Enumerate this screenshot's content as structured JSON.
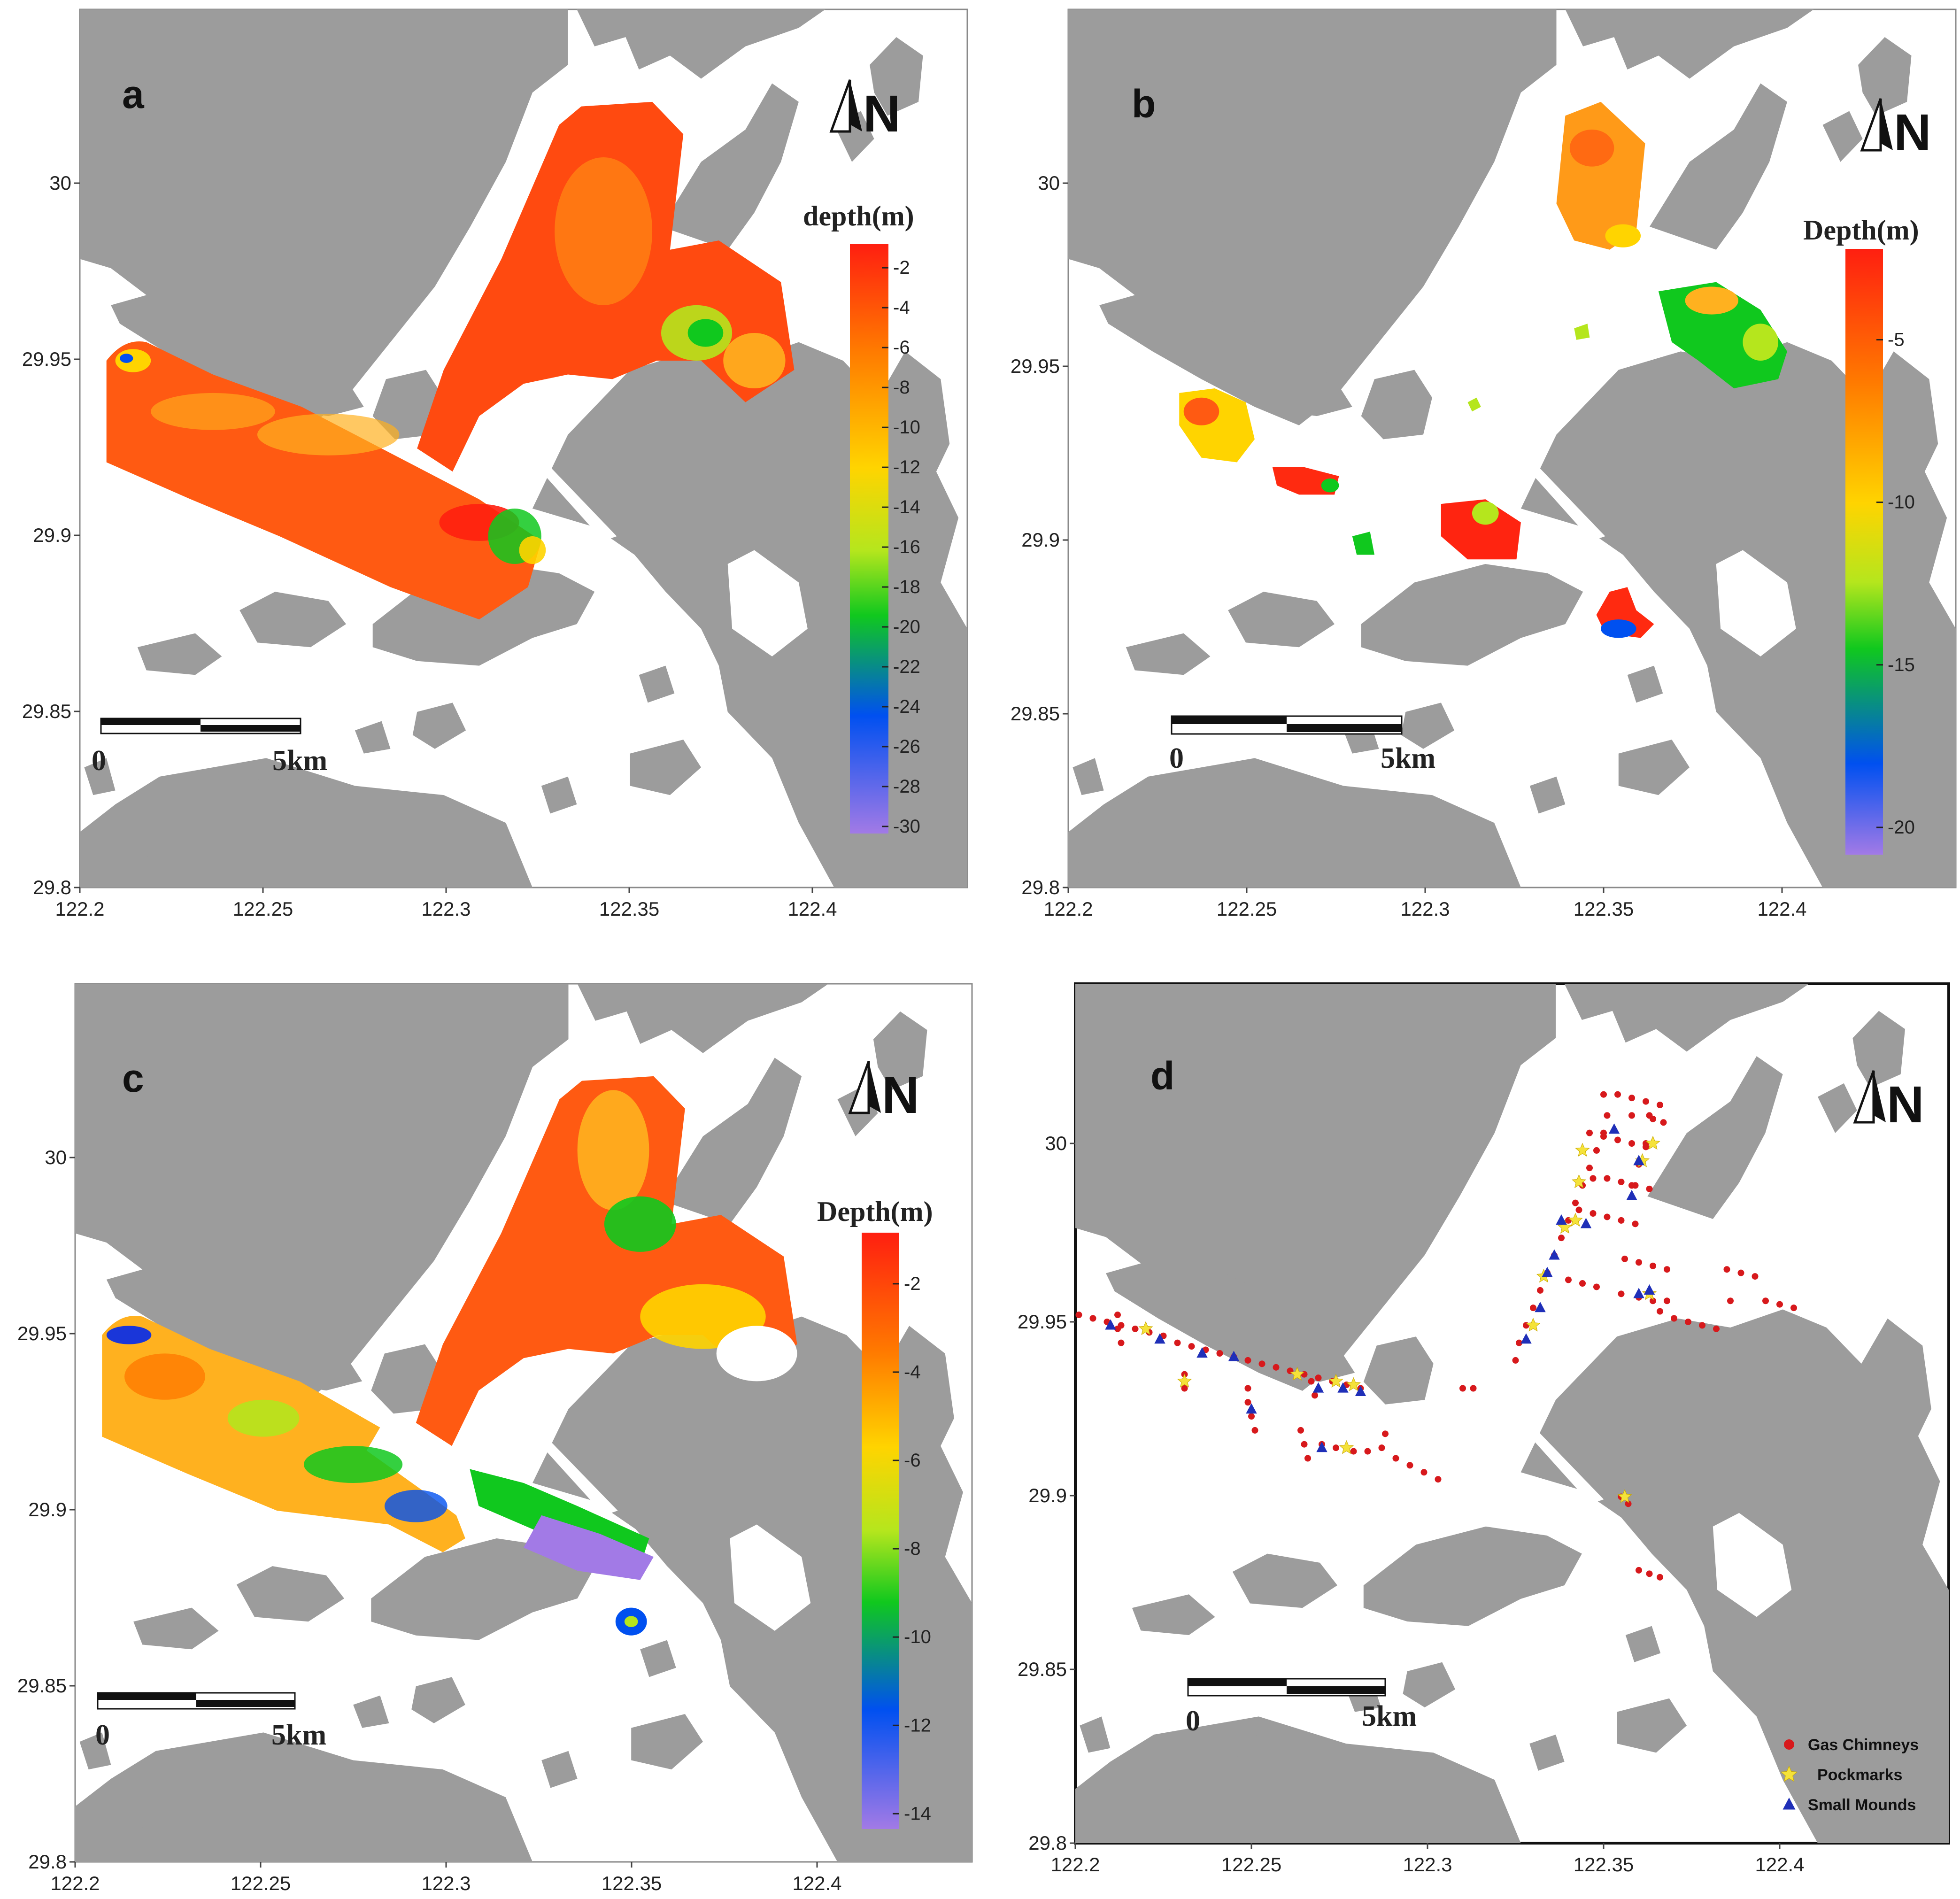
{
  "panels": {
    "a": {
      "label": "a",
      "legend_title": "depth(m)",
      "colorbar_ticks": [
        "-2",
        "-4",
        "-6",
        "-8",
        "-10",
        "-12",
        "-14",
        "-16",
        "-18",
        "-20",
        "-22",
        "-24",
        "-26",
        "-28",
        "-30"
      ]
    },
    "b": {
      "label": "b",
      "legend_title": "Depth(m)",
      "colorbar_ticks": [
        "-5",
        "-10",
        "-15",
        "-20"
      ]
    },
    "c": {
      "label": "c",
      "legend_title": "Depth(m)",
      "colorbar_ticks": [
        "-2",
        "-4",
        "-6",
        "-8",
        "-10",
        "-12",
        "-14"
      ]
    },
    "d": {
      "label": "d"
    }
  },
  "axes": {
    "x_ticks": [
      "122.2",
      "122.25",
      "122.3",
      "122.35",
      "122.4"
    ],
    "y_ticks": [
      "29.8",
      "29.85",
      "29.9",
      "29.95",
      "30"
    ]
  },
  "north": {
    "letter": "N"
  },
  "scale_bar": {
    "start": "0",
    "end": "5km"
  },
  "feature_legend": {
    "items": [
      {
        "label": "Gas Chimneys",
        "color": "#d7191c",
        "marker": "circle"
      },
      {
        "label": "Pockmarks",
        "color": "#f5e23a",
        "marker": "star"
      },
      {
        "label": "Small Mounds",
        "color": "#1f2fb8",
        "marker": "triangle"
      }
    ]
  },
  "colors": {
    "land": "#9c9c9c",
    "water": "#ffffff",
    "colormap": [
      "#ff1f10",
      "#ff7a00",
      "#ffd400",
      "#b5e61d",
      "#10c81e",
      "#0050f0",
      "#a27ae6"
    ]
  },
  "feature_points": {
    "gas_chimneys": [
      [
        122.201,
        29.951
      ],
      [
        122.205,
        29.95
      ],
      [
        122.209,
        29.949
      ],
      [
        122.213,
        29.948
      ],
      [
        122.217,
        29.947
      ],
      [
        122.221,
        29.946
      ],
      [
        122.225,
        29.945
      ],
      [
        122.229,
        29.943
      ],
      [
        122.233,
        29.942
      ],
      [
        122.237,
        29.941
      ],
      [
        122.241,
        29.94
      ],
      [
        122.245,
        29.939
      ],
      [
        122.249,
        29.938
      ],
      [
        122.253,
        29.937
      ],
      [
        122.257,
        29.936
      ],
      [
        122.261,
        29.935
      ],
      [
        122.265,
        29.934
      ],
      [
        122.269,
        29.933
      ],
      [
        122.273,
        29.932
      ],
      [
        122.277,
        29.931
      ],
      [
        122.281,
        29.93
      ],
      [
        122.212,
        29.951
      ],
      [
        122.212,
        29.947
      ],
      [
        122.213,
        29.943
      ],
      [
        122.231,
        29.934
      ],
      [
        122.231,
        29.93
      ],
      [
        122.249,
        29.93
      ],
      [
        122.249,
        29.926
      ],
      [
        122.25,
        29.922
      ],
      [
        122.251,
        29.918
      ],
      [
        122.267,
        29.932
      ],
      [
        122.268,
        29.928
      ],
      [
        122.264,
        29.918
      ],
      [
        122.265,
        29.914
      ],
      [
        122.266,
        29.91
      ],
      [
        122.27,
        29.914
      ],
      [
        122.274,
        29.913
      ],
      [
        122.279,
        29.912
      ],
      [
        122.283,
        29.912
      ],
      [
        122.287,
        29.913
      ],
      [
        122.288,
        29.917
      ],
      [
        122.291,
        29.91
      ],
      [
        122.295,
        29.908
      ],
      [
        122.299,
        29.906
      ],
      [
        122.303,
        29.904
      ],
      [
        122.31,
        29.93
      ],
      [
        122.313,
        29.93
      ],
      [
        122.355,
        29.899
      ],
      [
        122.357,
        29.897
      ],
      [
        122.36,
        29.878
      ],
      [
        122.363,
        29.877
      ],
      [
        122.366,
        29.876
      ],
      [
        122.325,
        29.938
      ],
      [
        122.326,
        29.943
      ],
      [
        122.328,
        29.948
      ],
      [
        122.33,
        29.953
      ],
      [
        122.332,
        29.958
      ],
      [
        122.334,
        29.963
      ],
      [
        122.336,
        29.968
      ],
      [
        122.338,
        29.973
      ],
      [
        122.34,
        29.978
      ],
      [
        122.342,
        29.983
      ],
      [
        122.344,
        29.988
      ],
      [
        122.346,
        29.993
      ],
      [
        122.348,
        29.998
      ],
      [
        122.35,
        30.003
      ],
      [
        122.351,
        30.008
      ],
      [
        122.346,
        30.003
      ],
      [
        122.35,
        30.002
      ],
      [
        122.354,
        30.001
      ],
      [
        122.358,
        30.0
      ],
      [
        122.362,
        29.999
      ],
      [
        122.347,
        29.99
      ],
      [
        122.351,
        29.99
      ],
      [
        122.355,
        29.989
      ],
      [
        122.359,
        29.988
      ],
      [
        122.363,
        29.987
      ],
      [
        122.343,
        29.981
      ],
      [
        122.347,
        29.98
      ],
      [
        122.351,
        29.979
      ],
      [
        122.355,
        29.978
      ],
      [
        122.359,
        29.977
      ],
      [
        122.35,
        30.014
      ],
      [
        122.354,
        30.014
      ],
      [
        122.358,
        30.013
      ],
      [
        122.362,
        30.012
      ],
      [
        122.366,
        30.011
      ],
      [
        122.364,
        30.007
      ],
      [
        122.362,
        30.0
      ],
      [
        122.36,
        29.994
      ],
      [
        122.358,
        29.988
      ],
      [
        122.358,
        30.008
      ],
      [
        122.363,
        30.008
      ],
      [
        122.367,
        30.006
      ],
      [
        122.34,
        29.961
      ],
      [
        122.344,
        29.96
      ],
      [
        122.348,
        29.959
      ],
      [
        122.356,
        29.967
      ],
      [
        122.36,
        29.966
      ],
      [
        122.364,
        29.965
      ],
      [
        122.368,
        29.964
      ],
      [
        122.355,
        29.957
      ],
      [
        122.36,
        29.956
      ],
      [
        122.364,
        29.955
      ],
      [
        122.368,
        29.955
      ],
      [
        122.366,
        29.952
      ],
      [
        122.37,
        29.95
      ],
      [
        122.374,
        29.949
      ],
      [
        122.378,
        29.948
      ],
      [
        122.382,
        29.947
      ],
      [
        122.385,
        29.964
      ],
      [
        122.389,
        29.963
      ],
      [
        122.393,
        29.962
      ],
      [
        122.386,
        29.955
      ],
      [
        122.396,
        29.955
      ],
      [
        122.4,
        29.954
      ],
      [
        122.404,
        29.953
      ]
    ],
    "pockmarks": [
      [
        122.22,
        29.947
      ],
      [
        122.231,
        29.932
      ],
      [
        122.263,
        29.934
      ],
      [
        122.274,
        29.932
      ],
      [
        122.279,
        29.931
      ],
      [
        122.277,
        29.913
      ],
      [
        122.33,
        29.948
      ],
      [
        122.333,
        29.962
      ],
      [
        122.339,
        29.976
      ],
      [
        122.342,
        29.978
      ],
      [
        122.343,
        29.989
      ],
      [
        122.344,
        29.998
      ],
      [
        122.361,
        29.995
      ],
      [
        122.364,
        30.0
      ],
      [
        122.356,
        29.899
      ],
      [
        122.363,
        29.957
      ]
    ],
    "small_mounds": [
      [
        122.21,
        29.948
      ],
      [
        122.224,
        29.944
      ],
      [
        122.236,
        29.94
      ],
      [
        122.245,
        29.939
      ],
      [
        122.25,
        29.924
      ],
      [
        122.269,
        29.93
      ],
      [
        122.276,
        29.93
      ],
      [
        122.281,
        29.929
      ],
      [
        122.27,
        29.913
      ],
      [
        122.328,
        29.944
      ],
      [
        122.332,
        29.953
      ],
      [
        122.334,
        29.963
      ],
      [
        122.336,
        29.968
      ],
      [
        122.338,
        29.978
      ],
      [
        122.345,
        29.977
      ],
      [
        122.353,
        30.004
      ],
      [
        122.36,
        29.995
      ],
      [
        122.358,
        29.985
      ],
      [
        122.36,
        29.957
      ],
      [
        122.363,
        29.958
      ]
    ]
  }
}
